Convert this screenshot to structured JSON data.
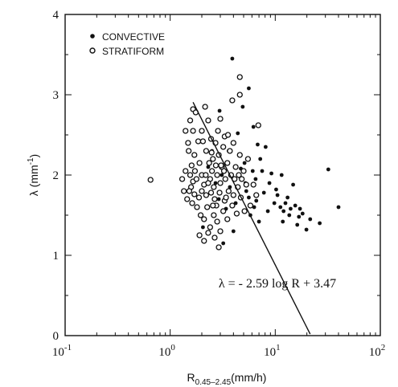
{
  "chart_data": {
    "type": "scatter",
    "title": "",
    "x_scale": "log",
    "xlim": [
      0.1,
      100
    ],
    "ylim": [
      0,
      4
    ],
    "x_ticks": [
      {
        "value": 0.1,
        "base": "10",
        "exp": "-1"
      },
      {
        "value": 1,
        "base": "10",
        "exp": "0"
      },
      {
        "value": 10,
        "base": "10",
        "exp": "1"
      },
      {
        "value": 100,
        "base": "10",
        "exp": "2"
      }
    ],
    "y_ticks": [
      "0",
      "1",
      "2",
      "3",
      "4"
    ],
    "xlabel": {
      "main": "R",
      "sub": "0.45–2.45",
      "unit": "(mm/h)"
    },
    "ylabel": {
      "main": "λ (mm",
      "sup": "-1",
      "close": ")"
    },
    "legend": {
      "placement": "top-left",
      "entries": [
        "CONVECTIVE",
        "STRATIFORM"
      ]
    },
    "annotation": "λ = - 2.59 log R + 3.47",
    "fit_line": {
      "slope": -2.59,
      "intercept": 3.47,
      "x_range": [
        1.65,
        21.5
      ]
    },
    "series": [
      {
        "name": "CONVECTIVE",
        "marker": "filled-circle",
        "points": [
          [
            3.9,
            3.45
          ],
          [
            5.6,
            3.08
          ],
          [
            4.9,
            2.85
          ],
          [
            6.2,
            2.6
          ],
          [
            6.8,
            2.38
          ],
          [
            8.1,
            2.35
          ],
          [
            7.2,
            2.2
          ],
          [
            5.1,
            2.15
          ],
          [
            9.2,
            2.02
          ],
          [
            6.5,
            1.95
          ],
          [
            11.5,
            2.0
          ],
          [
            14.8,
            1.88
          ],
          [
            10.2,
            1.82
          ],
          [
            7.8,
            1.78
          ],
          [
            13.1,
            1.72
          ],
          [
            15.5,
            1.62
          ],
          [
            17.2,
            1.58
          ],
          [
            12.0,
            1.55
          ],
          [
            11.2,
            1.6
          ],
          [
            13.6,
            1.5
          ],
          [
            16.8,
            1.48
          ],
          [
            18.2,
            1.52
          ],
          [
            21.5,
            1.45
          ],
          [
            26.5,
            1.4
          ],
          [
            8.5,
            1.55
          ],
          [
            5.8,
            1.5
          ],
          [
            6.6,
            1.68
          ],
          [
            32.0,
            2.07
          ],
          [
            40.0,
            1.6
          ],
          [
            16.2,
            1.38
          ],
          [
            19.8,
            1.32
          ],
          [
            4.6,
            1.98
          ],
          [
            3.6,
            2.3
          ],
          [
            4.2,
            1.65
          ],
          [
            5.3,
            1.8
          ],
          [
            7.0,
            1.42
          ],
          [
            9.8,
            1.65
          ],
          [
            2.9,
            1.7
          ],
          [
            3.1,
            2.0
          ],
          [
            4.4,
            2.52
          ],
          [
            5.2,
            1.9
          ],
          [
            6.1,
            2.05
          ],
          [
            3.4,
            1.58
          ],
          [
            2.5,
            2.3
          ],
          [
            4.0,
            1.3
          ],
          [
            8.8,
            1.9
          ],
          [
            10.5,
            1.75
          ],
          [
            12.5,
            1.65
          ],
          [
            7.5,
            2.05
          ],
          [
            6.3,
            1.6
          ],
          [
            3.7,
            1.85
          ],
          [
            2.7,
            1.9
          ],
          [
            2.3,
            2.1
          ],
          [
            5.6,
            1.72
          ],
          [
            4.7,
            2.08
          ],
          [
            2.05,
            1.35
          ],
          [
            3.2,
            1.15
          ],
          [
            2.95,
            2.8
          ],
          [
            14.0,
            1.58
          ],
          [
            11.8,
            1.42
          ]
        ]
      },
      {
        "name": "STRATIFORM",
        "marker": "open-circle",
        "points": [
          [
            0.65,
            1.94
          ],
          [
            1.55,
            2.68
          ],
          [
            1.65,
            2.82
          ],
          [
            1.75,
            2.78
          ],
          [
            2.15,
            2.85
          ],
          [
            2.3,
            2.68
          ],
          [
            2.0,
            2.55
          ],
          [
            1.65,
            2.55
          ],
          [
            1.85,
            2.42
          ],
          [
            2.45,
            2.45
          ],
          [
            3.0,
            2.7
          ],
          [
            3.9,
            2.93
          ],
          [
            4.6,
            3.22
          ],
          [
            4.6,
            3.0
          ],
          [
            6.9,
            2.62
          ],
          [
            1.5,
            2.3
          ],
          [
            1.7,
            2.25
          ],
          [
            1.6,
            2.12
          ],
          [
            1.55,
            2.0
          ],
          [
            1.65,
            1.92
          ],
          [
            1.58,
            1.85
          ],
          [
            1.52,
            1.8
          ],
          [
            1.7,
            1.76
          ],
          [
            1.88,
            1.72
          ],
          [
            1.9,
            2.15
          ],
          [
            2.0,
            2.0
          ],
          [
            2.1,
            1.88
          ],
          [
            2.2,
            2.3
          ],
          [
            2.35,
            2.15
          ],
          [
            2.4,
            1.95
          ],
          [
            2.5,
            2.05
          ],
          [
            2.6,
            1.85
          ],
          [
            2.55,
            2.2
          ],
          [
            2.7,
            2.4
          ],
          [
            2.8,
            2.0
          ],
          [
            2.9,
            2.25
          ],
          [
            3.0,
            1.9
          ],
          [
            3.1,
            2.1
          ],
          [
            3.2,
            2.35
          ],
          [
            3.35,
            1.95
          ],
          [
            3.5,
            2.15
          ],
          [
            3.6,
            1.8
          ],
          [
            3.7,
            2.3
          ],
          [
            3.8,
            2.0
          ],
          [
            4.0,
            1.75
          ],
          [
            4.2,
            2.1
          ],
          [
            4.4,
            1.85
          ],
          [
            4.6,
            2.25
          ],
          [
            4.8,
            1.95
          ],
          [
            5.0,
            2.05
          ],
          [
            1.8,
            1.6
          ],
          [
            1.95,
            1.5
          ],
          [
            2.1,
            1.45
          ],
          [
            2.25,
            1.6
          ],
          [
            2.4,
            1.35
          ],
          [
            2.6,
            1.5
          ],
          [
            2.8,
            1.42
          ],
          [
            3.0,
            1.3
          ],
          [
            3.2,
            1.55
          ],
          [
            3.5,
            1.45
          ],
          [
            1.9,
            1.25
          ],
          [
            2.1,
            1.18
          ],
          [
            2.3,
            1.28
          ],
          [
            2.65,
            1.22
          ],
          [
            2.9,
            1.1
          ],
          [
            2.75,
            1.62
          ],
          [
            3.3,
            1.68
          ],
          [
            3.9,
            1.62
          ],
          [
            4.3,
            1.52
          ],
          [
            4.7,
            1.72
          ],
          [
            1.3,
            1.95
          ],
          [
            1.4,
            2.05
          ],
          [
            1.35,
            1.8
          ],
          [
            1.45,
            1.7
          ],
          [
            1.48,
            2.4
          ],
          [
            1.4,
            2.55
          ],
          [
            2.2,
            1.75
          ],
          [
            2.45,
            1.78
          ],
          [
            2.65,
            1.7
          ],
          [
            3.4,
            1.72
          ],
          [
            5.3,
            1.88
          ],
          [
            5.5,
            2.2
          ],
          [
            5.8,
            1.62
          ],
          [
            6.2,
            1.88
          ],
          [
            1.72,
            2.05
          ],
          [
            2.05,
            2.42
          ],
          [
            2.85,
            2.55
          ],
          [
            3.3,
            2.48
          ],
          [
            4.0,
            2.4
          ],
          [
            1.62,
            1.65
          ],
          [
            2.0,
            1.8
          ],
          [
            2.3,
            1.9
          ],
          [
            2.55,
            1.62
          ],
          [
            2.95,
            1.78
          ],
          [
            3.25,
            2.05
          ],
          [
            3.55,
            2.5
          ],
          [
            4.1,
            1.95
          ],
          [
            4.5,
            2.0
          ],
          [
            5.1,
            1.55
          ],
          [
            6.6,
            1.75
          ],
          [
            1.78,
            1.95
          ],
          [
            2.18,
            2.0
          ],
          [
            2.48,
            2.28
          ],
          [
            2.72,
            2.12
          ],
          [
            3.05,
            2.12
          ]
        ]
      }
    ]
  }
}
